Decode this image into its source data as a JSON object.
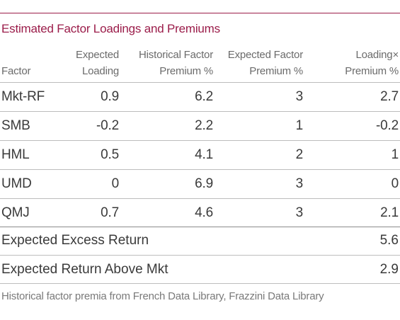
{
  "title": "Estimated Factor Loadings and Premiums",
  "headers": {
    "factor": "Factor",
    "loading": [
      "Expected",
      "Loading"
    ],
    "hist_premium": [
      "Historical Factor",
      "Premium %"
    ],
    "exp_premium": [
      "Expected Factor",
      "Premium %"
    ],
    "loading_x_premium": [
      "Loading×",
      "Premium %"
    ]
  },
  "rows": [
    {
      "factor": "Mkt-RF",
      "loading": "0.9",
      "hist_premium": "6.2",
      "exp_premium": "3",
      "product": "2.7"
    },
    {
      "factor": "SMB",
      "loading": "-0.2",
      "hist_premium": "2.2",
      "exp_premium": "1",
      "product": "-0.2"
    },
    {
      "factor": "HML",
      "loading": "0.5",
      "hist_premium": "4.1",
      "exp_premium": "2",
      "product": "1"
    },
    {
      "factor": "UMD",
      "loading": "0",
      "hist_premium": "6.9",
      "exp_premium": "3",
      "product": "0"
    },
    {
      "factor": "QMJ",
      "loading": "0.7",
      "hist_premium": "4.6",
      "exp_premium": "3",
      "product": "2.1"
    }
  ],
  "summary": [
    {
      "label": "Expected Excess Return",
      "value": "5.6"
    },
    {
      "label": "Expected Return Above Mkt",
      "value": "2.9"
    }
  ],
  "footnote": "Historical factor premia from French Data Library, Frazzini Data Library",
  "colors": {
    "accent": "#9b1d4a",
    "text": "#3a3a3a",
    "header_text": "#6b6b6b",
    "rule": "#bdbdbd"
  }
}
